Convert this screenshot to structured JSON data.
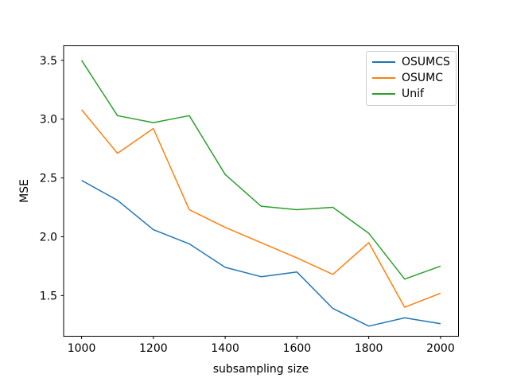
{
  "chart_data": {
    "type": "line",
    "title": "",
    "xlabel": "subsampling size",
    "ylabel": "MSE",
    "x": [
      1000,
      1100,
      1200,
      1300,
      1400,
      1500,
      1600,
      1700,
      1800,
      1900,
      2000
    ],
    "series": [
      {
        "name": "OSUMCS",
        "color": "#1f77b4",
        "values": [
          2.48,
          2.31,
          2.06,
          1.94,
          1.74,
          1.66,
          1.7,
          1.39,
          1.24,
          1.31,
          1.26
        ]
      },
      {
        "name": "OSUMC",
        "color": "#ff7f0e",
        "values": [
          3.08,
          2.71,
          2.92,
          2.23,
          2.08,
          1.95,
          1.82,
          1.68,
          1.95,
          1.4,
          1.52
        ]
      },
      {
        "name": "Unif",
        "color": "#2ca02c",
        "values": [
          3.5,
          3.03,
          2.97,
          3.03,
          2.53,
          2.26,
          2.23,
          2.25,
          2.03,
          1.64,
          1.75
        ]
      }
    ],
    "xticks": [
      1000,
      1200,
      1400,
      1600,
      1800,
      2000
    ],
    "yticks": [
      1.5,
      2.0,
      2.5,
      3.0,
      3.5
    ],
    "xlim": [
      950,
      2050
    ],
    "ylim": [
      1.154,
      3.624
    ],
    "grid": false,
    "legend": {
      "position": "upper right",
      "entries": [
        "OSUMCS",
        "OSUMC",
        "Unif"
      ]
    },
    "colors": {
      "background": "#ffffff",
      "spine": "#000000",
      "text": "#000000"
    }
  }
}
